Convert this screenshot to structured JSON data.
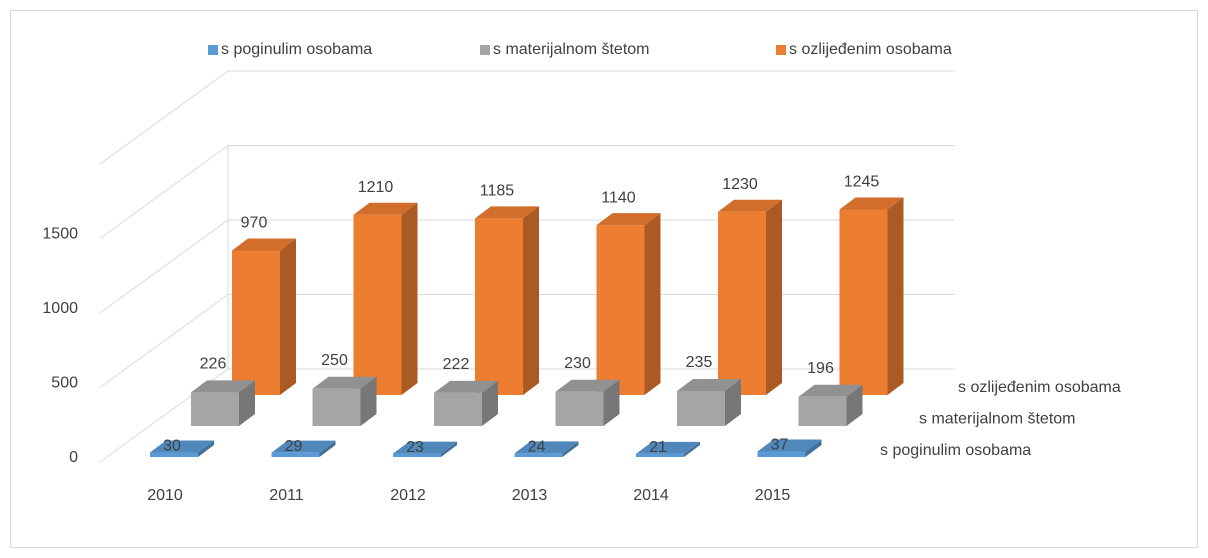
{
  "chart_data": {
    "type": "bar3d",
    "categories": [
      "2010",
      "2011",
      "2012",
      "2013",
      "2014",
      "2015"
    ],
    "series": [
      {
        "name": "s poginulim osobama",
        "color": "#5b9bd5",
        "values": [
          30,
          29,
          23,
          24,
          21,
          37
        ]
      },
      {
        "name": "s materijalnom štetom",
        "color": "#a5a5a5",
        "values": [
          226,
          250,
          222,
          230,
          235,
          196
        ]
      },
      {
        "name": "s ozlijeđenim osobama",
        "color": "#ed7d31",
        "values": [
          970,
          1210,
          1185,
          1140,
          1230,
          1245
        ]
      }
    ],
    "ylim": [
      0,
      2000
    ],
    "yticks": [
      0,
      500,
      1000,
      1500
    ],
    "grid": true,
    "legend": "top"
  }
}
